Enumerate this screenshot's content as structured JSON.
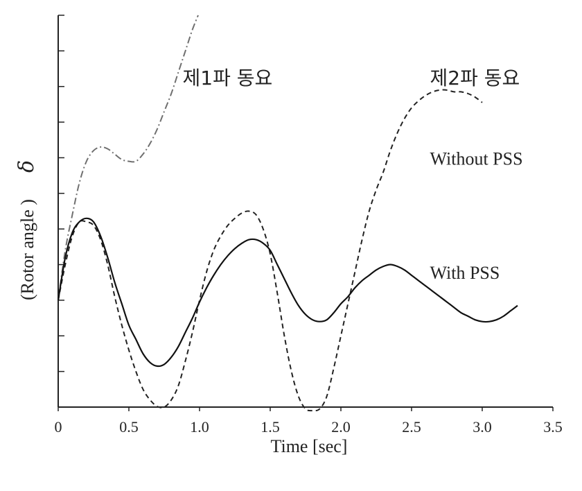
{
  "chart_data": {
    "type": "line",
    "title": "",
    "xlabel": "Time [sec]",
    "ylabel": "(Rotor angle )",
    "ylabel_symbol": "δ",
    "xlim": [
      0,
      3.5
    ],
    "ylim": [
      0,
      11
    ],
    "x_ticks": [
      0,
      0.5,
      1.0,
      1.5,
      2.0,
      2.5,
      3.0,
      3.5
    ],
    "x_tick_labels": [
      "0",
      "0.5",
      "1.0",
      "1.5",
      "2.0",
      "2.5",
      "3.0",
      "3.5"
    ],
    "y_ticks": [
      1,
      2,
      3,
      4,
      5,
      6,
      7,
      8,
      9,
      10,
      11
    ],
    "y_tick_labels": [],
    "grid": false,
    "series": [
      {
        "name": "제1파 동요",
        "style": "dash-dot",
        "color": "#6f6f6f",
        "x": [
          0,
          0.05,
          0.1,
          0.15,
          0.2,
          0.25,
          0.3,
          0.35,
          0.4,
          0.45,
          0.5,
          0.55,
          0.6,
          0.65,
          0.7,
          0.75,
          0.8,
          0.85,
          0.9,
          0.95,
          0.99
        ],
        "y": [
          3.0,
          4.4,
          5.4,
          6.3,
          6.9,
          7.2,
          7.3,
          7.25,
          7.1,
          6.95,
          6.9,
          6.9,
          7.1,
          7.4,
          7.8,
          8.3,
          8.8,
          9.4,
          10.0,
          10.6,
          11.0
        ]
      },
      {
        "name": "Without PSS",
        "style": "dashed",
        "color": "#222222",
        "x": [
          0,
          0.05,
          0.1,
          0.15,
          0.2,
          0.25,
          0.3,
          0.35,
          0.4,
          0.45,
          0.5,
          0.55,
          0.6,
          0.65,
          0.7,
          0.75,
          0.8,
          0.85,
          0.9,
          0.95,
          1.0,
          1.05,
          1.1,
          1.15,
          1.2,
          1.25,
          1.3,
          1.35,
          1.4,
          1.45,
          1.5,
          1.55,
          1.6,
          1.65,
          1.7,
          1.75,
          1.8,
          1.85,
          1.9,
          1.95,
          2.0,
          2.05,
          2.1,
          2.15,
          2.2,
          2.25,
          2.3,
          2.35,
          2.4,
          2.45,
          2.5,
          2.55,
          2.6,
          2.65,
          2.7,
          2.75,
          2.8,
          2.85,
          2.9,
          2.95,
          3.0
        ],
        "y": [
          3.0,
          4.0,
          4.8,
          5.2,
          5.2,
          5.1,
          4.7,
          4.0,
          3.1,
          2.3,
          1.6,
          1.0,
          0.5,
          0.2,
          0.02,
          0.0,
          0.2,
          0.6,
          1.3,
          2.1,
          3.0,
          3.8,
          4.4,
          4.8,
          5.1,
          5.3,
          5.45,
          5.5,
          5.4,
          5.0,
          4.3,
          3.2,
          2.0,
          1.0,
          0.3,
          -0.05,
          -0.1,
          -0.05,
          0.3,
          1.1,
          2.0,
          2.9,
          3.8,
          4.7,
          5.5,
          6.1,
          6.6,
          7.2,
          7.7,
          8.1,
          8.4,
          8.6,
          8.75,
          8.85,
          8.9,
          8.9,
          8.85,
          8.85,
          8.8,
          8.7,
          8.55
        ]
      },
      {
        "name": "With PSS",
        "style": "solid",
        "color": "#111111",
        "x": [
          0,
          0.05,
          0.1,
          0.15,
          0.2,
          0.25,
          0.3,
          0.35,
          0.4,
          0.45,
          0.5,
          0.55,
          0.6,
          0.65,
          0.7,
          0.75,
          0.8,
          0.85,
          0.9,
          0.95,
          1.0,
          1.05,
          1.1,
          1.15,
          1.2,
          1.25,
          1.3,
          1.35,
          1.4,
          1.45,
          1.5,
          1.55,
          1.6,
          1.65,
          1.7,
          1.75,
          1.8,
          1.85,
          1.9,
          1.95,
          2.0,
          2.05,
          2.1,
          2.15,
          2.2,
          2.25,
          2.3,
          2.35,
          2.4,
          2.45,
          2.5,
          2.55,
          2.6,
          2.65,
          2.7,
          2.75,
          2.8,
          2.85,
          2.9,
          2.95,
          3.0,
          3.05,
          3.1,
          3.15,
          3.2,
          3.25
        ],
        "y": [
          3.0,
          4.2,
          4.9,
          5.2,
          5.3,
          5.2,
          4.8,
          4.2,
          3.5,
          2.9,
          2.3,
          1.9,
          1.5,
          1.25,
          1.15,
          1.2,
          1.4,
          1.7,
          2.1,
          2.5,
          2.95,
          3.35,
          3.7,
          4.0,
          4.25,
          4.45,
          4.6,
          4.7,
          4.7,
          4.6,
          4.4,
          4.0,
          3.6,
          3.2,
          2.85,
          2.6,
          2.45,
          2.4,
          2.45,
          2.65,
          2.9,
          3.1,
          3.35,
          3.55,
          3.7,
          3.85,
          3.95,
          4.0,
          3.95,
          3.85,
          3.7,
          3.55,
          3.4,
          3.25,
          3.1,
          2.95,
          2.8,
          2.65,
          2.55,
          2.45,
          2.4,
          2.4,
          2.45,
          2.55,
          2.7,
          2.85
        ]
      }
    ],
    "annotations": [
      {
        "text": "제1파 동요",
        "x": 0.88,
        "y": 9.05
      },
      {
        "text": "제2파 동요",
        "x": 2.63,
        "y": 9.05
      },
      {
        "text": "Without PSS",
        "x": 2.63,
        "y": 6.8
      },
      {
        "text": "With PSS",
        "x": 2.63,
        "y": 3.6
      }
    ]
  }
}
